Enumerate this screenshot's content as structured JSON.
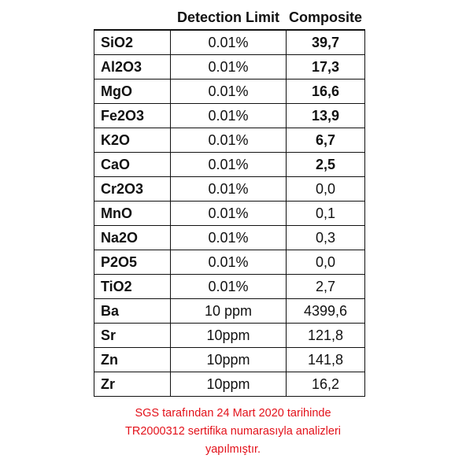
{
  "table": {
    "headers": [
      "",
      "Detection Limit",
      "Composite"
    ],
    "rows": [
      {
        "compound": "SiO2",
        "limit": "0.01%",
        "value": "39,7",
        "bold": true
      },
      {
        "compound": "Al2O3",
        "limit": "0.01%",
        "value": "17,3",
        "bold": true
      },
      {
        "compound": "MgO",
        "limit": "0.01%",
        "value": "16,6",
        "bold": true
      },
      {
        "compound": "Fe2O3",
        "limit": "0.01%",
        "value": "13,9",
        "bold": true
      },
      {
        "compound": "K2O",
        "limit": "0.01%",
        "value": "6,7",
        "bold": true
      },
      {
        "compound": "CaO",
        "limit": "0.01%",
        "value": "2,5",
        "bold": true
      },
      {
        "compound": "Cr2O3",
        "limit": "0.01%",
        "value": "0,0",
        "bold": false
      },
      {
        "compound": "MnO",
        "limit": "0.01%",
        "value": "0,1",
        "bold": false
      },
      {
        "compound": "Na2O",
        "limit": "0.01%",
        "value": "0,3",
        "bold": false
      },
      {
        "compound": "P2O5",
        "limit": "0.01%",
        "value": "0,0",
        "bold": false
      },
      {
        "compound": "TiO2",
        "limit": "0.01%",
        "value": "2,7",
        "bold": false
      },
      {
        "compound": "Ba",
        "limit": "10 ppm",
        "value": "4399,6",
        "bold": false
      },
      {
        "compound": "Sr",
        "limit": "10ppm",
        "value": "121,8",
        "bold": false
      },
      {
        "compound": "Zn",
        "limit": "10ppm",
        "value": "141,8",
        "bold": false
      },
      {
        "compound": "Zr",
        "limit": "10ppm",
        "value": "16,2",
        "bold": false
      }
    ]
  },
  "note": {
    "lines": [
      "SGS tarafından 24 Mart 2020 tarihinde",
      "TR2000312 sertifika numarasıyla analizleri",
      "yapılmıştır."
    ],
    "color": "#e3111a"
  }
}
